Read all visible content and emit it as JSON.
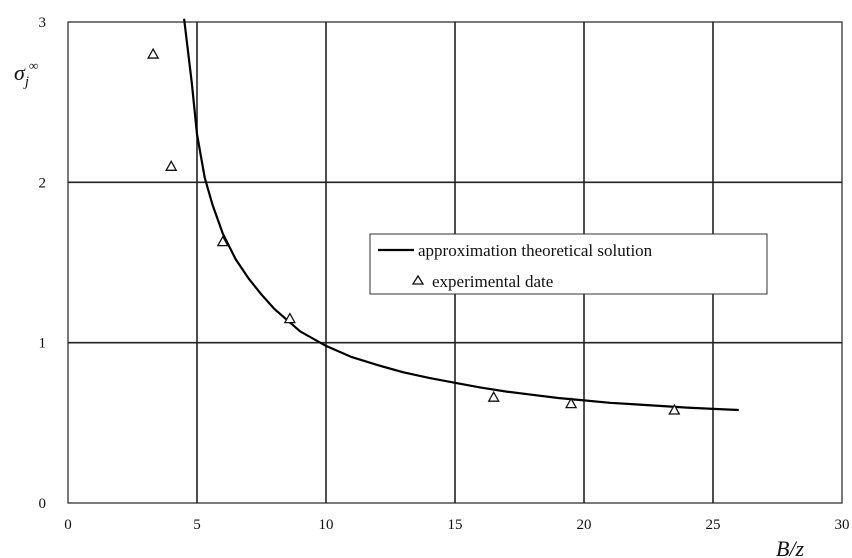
{
  "chart_data": {
    "type": "line",
    "title": "",
    "xlabel": "B/z",
    "ylabel": "σ",
    "ylabel_subscript": "j",
    "ylabel_superscript": "∞",
    "xlim": [
      0,
      30
    ],
    "ylim": [
      0,
      3
    ],
    "x_ticks": [
      0,
      5,
      10,
      15,
      20,
      25,
      30
    ],
    "y_ticks": [
      0,
      1,
      2,
      3
    ],
    "grid": true,
    "legend_position": "right-middle",
    "series": [
      {
        "name": "approximation theoretical solution",
        "style": "line",
        "color": "#000000",
        "x": [
          4.5,
          4.8,
          5.0,
          5.3,
          5.6,
          6.0,
          6.5,
          7.0,
          7.5,
          8.0,
          8.5,
          9.0,
          10.0,
          11.0,
          12.0,
          13.0,
          14.0,
          15.0,
          16.0,
          17.0,
          18.0,
          19.0,
          20.0,
          21.0,
          22.0,
          23.0,
          24.0,
          25.0,
          26.0
        ],
        "y": [
          3.05,
          2.62,
          2.3,
          2.03,
          1.86,
          1.68,
          1.52,
          1.4,
          1.3,
          1.21,
          1.14,
          1.07,
          0.98,
          0.91,
          0.86,
          0.815,
          0.78,
          0.75,
          0.72,
          0.695,
          0.675,
          0.655,
          0.64,
          0.625,
          0.615,
          0.605,
          0.595,
          0.587,
          0.58
        ]
      },
      {
        "name": "experimental date",
        "style": "marker",
        "marker": "triangle",
        "color": "#000000",
        "x": [
          3.3,
          4.0,
          6.0,
          8.6,
          16.5,
          19.5,
          23.5
        ],
        "y": [
          2.8,
          2.1,
          1.63,
          1.15,
          0.66,
          0.62,
          0.58
        ]
      }
    ]
  }
}
